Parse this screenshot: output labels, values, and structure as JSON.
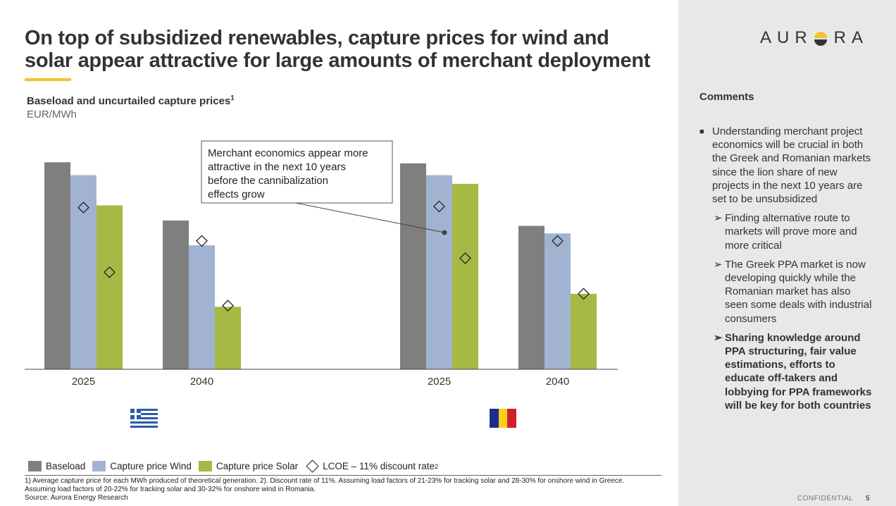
{
  "title": "On top of subsidized renewables, capture prices for wind and solar appear attractive for large amounts of merchant deployment",
  "chart_header": {
    "title": "Baseload and uncurtailed capture prices",
    "title_sup": "1",
    "unit": "EUR/MWh"
  },
  "annotation": "Merchant economics appear more attractive in the next 10 years before the cannibalization effects grow",
  "colors": {
    "baseload": "#7f7f7f",
    "wind": "#a2b3d1",
    "solar": "#a7b944",
    "accent": "#f2c230",
    "sidebar": "#e8e8e8"
  },
  "chart_data": {
    "type": "bar",
    "ylim": [
      0,
      100
    ],
    "groups": [
      {
        "country": "Greece",
        "flag": "greece-flag"
      },
      {
        "country": "Romania",
        "flag": "romania-flag"
      }
    ],
    "categories": [
      "2025",
      "2040",
      "2025",
      "2040"
    ],
    "series": [
      {
        "name": "Baseload",
        "values": [
          96,
          69,
          95.5,
          66.5
        ]
      },
      {
        "name": "Capture price Wind",
        "values": [
          90,
          57.5,
          90,
          63
        ]
      },
      {
        "name": "Capture price Solar",
        "values": [
          76,
          29,
          86,
          null
        ]
      },
      {
        "name": "LCOE – 11% discount rate",
        "type": "marker",
        "values_by_series": {
          "Capture price Wind": [
            75,
            59.5,
            75.5,
            59.5
          ],
          "Capture price Solar": [
            45,
            29.5,
            51.5,
            35
          ]
        }
      }
    ],
    "solar_2040_romania": 35
  },
  "legend": {
    "baseload": "Baseload",
    "wind": "Capture price Wind",
    "solar": "Capture price Solar",
    "lcoe": "LCOE – 11% discount rate",
    "lcoe_sup": "2"
  },
  "footnotes": {
    "line1": "1) Average capture price for each MWh produced of theoretical generation. 2). Discount rate of 11%. Assuming load factors of 21-23% for tracking solar and 28-30% for onshore wind in Greece.",
    "line2": "Assuming load factors of  20-22% for tracking solar and  30-32% for onshore wind in Romania.",
    "source": "Source: Aurora Energy Research"
  },
  "sidebar": {
    "logo_left": "AUR",
    "logo_right": "RA",
    "comments_title": "Comments",
    "bullet": "Understanding merchant project economics will be crucial in both the Greek and Romanian markets since the lion share of new projects in the next 10 years are set to be unsubsidized",
    "sub1": "Finding alternative route to markets will prove more and more critical",
    "sub2": "The Greek PPA market is now developing quickly while the Romanian market has also seen some deals with industrial consumers",
    "sub3": "Sharing knowledge around PPA structuring, fair value estimations, efforts to educate off-takers and lobbying for PPA frameworks will be key for both countries"
  },
  "footer": {
    "confidential": "CONFIDENTIAL",
    "page": "5"
  }
}
